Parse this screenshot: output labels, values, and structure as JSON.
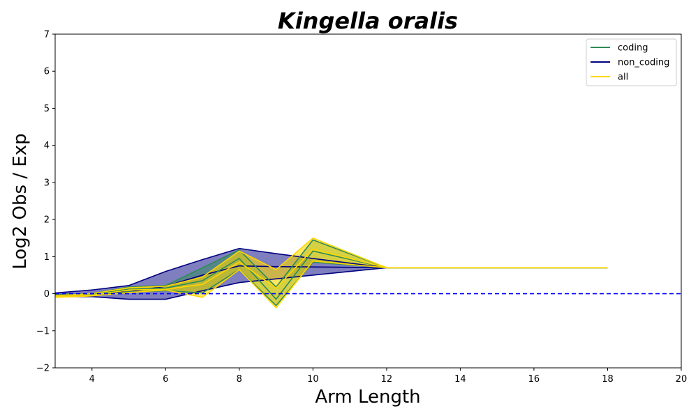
{
  "chart_data": {
    "type": "line",
    "title": "Kingella oralis",
    "xlabel": "Arm Length",
    "ylabel": "Log2 Obs / Exp",
    "xlim": [
      3,
      20
    ],
    "ylim": [
      -2,
      7
    ],
    "xticks": [
      4,
      6,
      8,
      10,
      12,
      14,
      16,
      18,
      20
    ],
    "yticks": [
      -2,
      -1,
      0,
      1,
      2,
      3,
      4,
      5,
      6,
      7
    ],
    "ytick_labels": [
      "−2",
      "−1",
      "0",
      "1",
      "2",
      "3",
      "4",
      "5",
      "6",
      "7"
    ],
    "grid": false,
    "legend_position": "top-right",
    "reference_line": {
      "y": 0,
      "style": "dashed",
      "color": "#0000ff"
    },
    "series": [
      {
        "name": "coding",
        "color": "#2e8b57",
        "x": [
          3,
          4,
          5,
          6,
          7,
          8,
          9,
          10,
          12,
          18
        ],
        "y": [
          -0.05,
          -0.02,
          0.12,
          0.15,
          0.35,
          0.95,
          -0.15,
          1.15,
          0.7,
          0.7
        ],
        "upper": [
          -0.02,
          0.0,
          0.18,
          0.22,
          0.7,
          1.18,
          0.18,
          1.45,
          0.7,
          0.7
        ],
        "lower": [
          -0.08,
          -0.05,
          0.05,
          0.08,
          0.02,
          0.65,
          -0.32,
          0.85,
          0.7,
          0.7
        ]
      },
      {
        "name": "non_coding",
        "color": "#000080",
        "x": [
          3,
          4,
          5,
          6,
          7,
          8,
          9,
          10,
          12,
          18
        ],
        "y": [
          -0.03,
          0.0,
          0.05,
          0.2,
          0.5,
          0.75,
          0.73,
          0.72,
          0.7,
          0.7
        ],
        "upper": [
          0.02,
          0.1,
          0.22,
          0.6,
          0.92,
          1.22,
          1.08,
          0.95,
          0.7,
          0.7
        ],
        "lower": [
          -0.08,
          -0.08,
          -0.15,
          -0.15,
          0.08,
          0.3,
          0.4,
          0.5,
          0.7,
          0.7
        ]
      },
      {
        "name": "all",
        "color": "#ffd700",
        "x": [
          3,
          4,
          5,
          6,
          7,
          8,
          9,
          10,
          12,
          18
        ],
        "y": [
          -0.08,
          -0.04,
          0.1,
          0.12,
          0.25,
          0.85,
          0.15,
          1.2,
          0.7,
          0.7
        ],
        "upper": [
          -0.05,
          0.0,
          0.16,
          0.2,
          0.45,
          1.15,
          0.65,
          1.5,
          0.7,
          0.7
        ],
        "lower": [
          -0.1,
          -0.06,
          0.03,
          0.1,
          -0.1,
          0.65,
          -0.38,
          0.88,
          0.7,
          0.7
        ]
      }
    ]
  }
}
